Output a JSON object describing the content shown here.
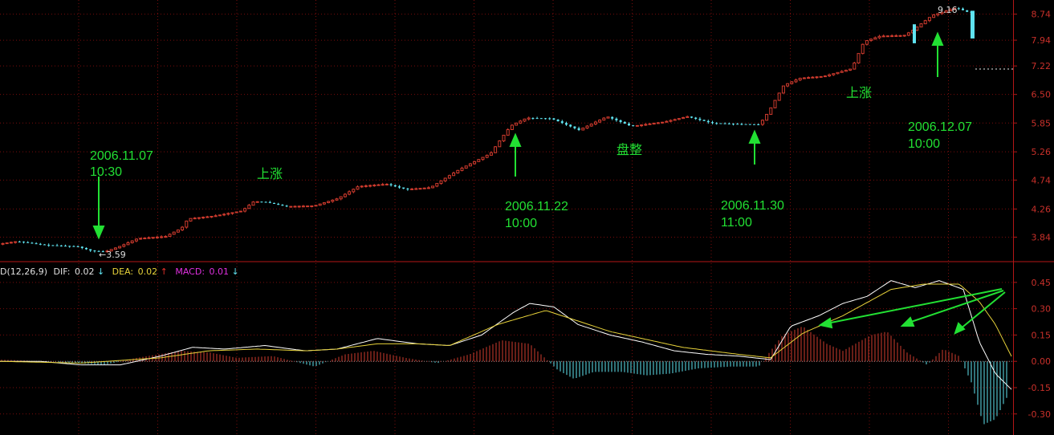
{
  "chart_data": {
    "type": "candlestick",
    "price_axis": {
      "ticks": [
        8.74,
        7.94,
        7.22,
        6.5,
        5.85,
        5.26,
        4.74,
        4.26,
        3.84
      ],
      "log_scale": true,
      "ylim": [
        3.55,
        9.1
      ]
    },
    "macd_axis": {
      "ticks": [
        0.45,
        0.3,
        0.15,
        0.0,
        -0.15,
        -0.3
      ],
      "ylim": [
        -0.42,
        0.55
      ]
    },
    "low_marker": "3.59",
    "high_marker": "9.16",
    "macd_header": {
      "macd_label": "D(12,26,9)",
      "dif_label": "DIF:",
      "dif_value": "0.02",
      "dif_arrow": "↓",
      "dea_label": "DEA:",
      "dea_value": "0.02",
      "dea_arrow": "↑",
      "macd_value_label": "MACD:",
      "macd_value": "0.01",
      "macd_arrow": "↓"
    },
    "annotations": [
      {
        "date": "2006.11.07",
        "time": "10:30"
      },
      {
        "date": "2006.11.22",
        "time": "10:00"
      },
      {
        "date": "2006.11.30",
        "time": "11:00"
      },
      {
        "date": "2006.12.07",
        "time": "10:00"
      }
    ],
    "labels": [
      {
        "text": "上涨"
      },
      {
        "text": "盘整"
      },
      {
        "text": "上涨"
      }
    ],
    "close_anchors": [
      [
        0,
        3.74
      ],
      [
        25,
        3.78
      ],
      [
        60,
        3.73
      ],
      [
        100,
        3.71
      ],
      [
        118,
        3.65
      ],
      [
        135,
        3.64
      ],
      [
        155,
        3.72
      ],
      [
        175,
        3.82
      ],
      [
        210,
        3.85
      ],
      [
        230,
        3.97
      ],
      [
        238,
        4.11
      ],
      [
        270,
        4.15
      ],
      [
        305,
        4.23
      ],
      [
        320,
        4.38
      ],
      [
        335,
        4.37
      ],
      [
        360,
        4.3
      ],
      [
        395,
        4.31
      ],
      [
        425,
        4.43
      ],
      [
        450,
        4.63
      ],
      [
        485,
        4.67
      ],
      [
        510,
        4.58
      ],
      [
        540,
        4.61
      ],
      [
        575,
        4.92
      ],
      [
        615,
        5.23
      ],
      [
        640,
        5.79
      ],
      [
        660,
        5.96
      ],
      [
        690,
        5.95
      ],
      [
        725,
        5.7
      ],
      [
        760,
        5.99
      ],
      [
        790,
        5.78
      ],
      [
        830,
        5.87
      ],
      [
        860,
        5.99
      ],
      [
        890,
        5.85
      ],
      [
        920,
        5.83
      ],
      [
        950,
        5.82
      ],
      [
        962,
        6.12
      ],
      [
        980,
        6.72
      ],
      [
        1000,
        6.9
      ],
      [
        1030,
        6.95
      ],
      [
        1065,
        7.15
      ],
      [
        1080,
        7.9
      ],
      [
        1100,
        8.06
      ],
      [
        1130,
        8.08
      ],
      [
        1140,
        8.22
      ],
      [
        1165,
        8.7
      ],
      [
        1195,
        8.95
      ],
      [
        1210,
        8.8
      ]
    ],
    "dif_anchors": [
      [
        0,
        0.0
      ],
      [
        50,
        0.0
      ],
      [
        100,
        -0.02
      ],
      [
        150,
        -0.02
      ],
      [
        200,
        0.03
      ],
      [
        240,
        0.08
      ],
      [
        280,
        0.07
      ],
      [
        330,
        0.09
      ],
      [
        380,
        0.06
      ],
      [
        420,
        0.07
      ],
      [
        470,
        0.13
      ],
      [
        520,
        0.1
      ],
      [
        560,
        0.09
      ],
      [
        600,
        0.15
      ],
      [
        640,
        0.28
      ],
      [
        660,
        0.33
      ],
      [
        690,
        0.31
      ],
      [
        720,
        0.21
      ],
      [
        760,
        0.15
      ],
      [
        800,
        0.11
      ],
      [
        840,
        0.06
      ],
      [
        880,
        0.04
      ],
      [
        920,
        0.03
      ],
      [
        960,
        0.01
      ],
      [
        985,
        0.2
      ],
      [
        1020,
        0.26
      ],
      [
        1050,
        0.33
      ],
      [
        1080,
        0.37
      ],
      [
        1110,
        0.46
      ],
      [
        1140,
        0.42
      ],
      [
        1170,
        0.46
      ],
      [
        1200,
        0.41
      ],
      [
        1220,
        0.11
      ],
      [
        1240,
        -0.07
      ],
      [
        1260,
        -0.16
      ]
    ],
    "dea_anchors": [
      [
        0,
        0.0
      ],
      [
        100,
        -0.01
      ],
      [
        200,
        0.02
      ],
      [
        260,
        0.06
      ],
      [
        320,
        0.07
      ],
      [
        380,
        0.06
      ],
      [
        420,
        0.07
      ],
      [
        470,
        0.1
      ],
      [
        520,
        0.1
      ],
      [
        560,
        0.09
      ],
      [
        620,
        0.21
      ],
      [
        680,
        0.29
      ],
      [
        720,
        0.23
      ],
      [
        760,
        0.17
      ],
      [
        800,
        0.13
      ],
      [
        850,
        0.08
      ],
      [
        920,
        0.04
      ],
      [
        960,
        0.02
      ],
      [
        1000,
        0.16
      ],
      [
        1050,
        0.26
      ],
      [
        1110,
        0.41
      ],
      [
        1150,
        0.44
      ],
      [
        1195,
        0.44
      ],
      [
        1220,
        0.34
      ],
      [
        1240,
        0.21
      ],
      [
        1262,
        0.01
      ]
    ],
    "bar_anchors": [
      [
        0,
        0.01
      ],
      [
        60,
        0.0
      ],
      [
        130,
        -0.02
      ],
      [
        170,
        0.02
      ],
      [
        225,
        0.06
      ],
      [
        262,
        0.05
      ],
      [
        295,
        0.02
      ],
      [
        340,
        0.03
      ],
      [
        392,
        -0.03
      ],
      [
        430,
        0.04
      ],
      [
        465,
        0.06
      ],
      [
        505,
        0.02
      ],
      [
        545,
        -0.01
      ],
      [
        585,
        0.04
      ],
      [
        625,
        0.12
      ],
      [
        660,
        0.1
      ],
      [
        695,
        -0.05
      ],
      [
        715,
        -0.1
      ],
      [
        740,
        -0.06
      ],
      [
        775,
        -0.06
      ],
      [
        805,
        -0.08
      ],
      [
        835,
        -0.07
      ],
      [
        870,
        -0.04
      ],
      [
        910,
        -0.03
      ],
      [
        945,
        -0.03
      ],
      [
        975,
        0.15
      ],
      [
        1000,
        0.2
      ],
      [
        1030,
        0.1
      ],
      [
        1050,
        0.06
      ],
      [
        1085,
        0.15
      ],
      [
        1105,
        0.17
      ],
      [
        1130,
        0.05
      ],
      [
        1155,
        -0.02
      ],
      [
        1175,
        0.07
      ],
      [
        1195,
        0.03
      ],
      [
        1210,
        -0.12
      ],
      [
        1225,
        -0.36
      ],
      [
        1240,
        -0.33
      ],
      [
        1255,
        -0.2
      ]
    ]
  },
  "colors": {
    "up": "#d13b2e",
    "down": "#5fe3f0",
    "grid": "#7a0c0c",
    "border": "#b31616",
    "dif": "#ffffff",
    "dea": "#e8d33a",
    "macd_label": "#e030e0",
    "annotation": "#22e033",
    "axis_text": "#c8302a"
  }
}
